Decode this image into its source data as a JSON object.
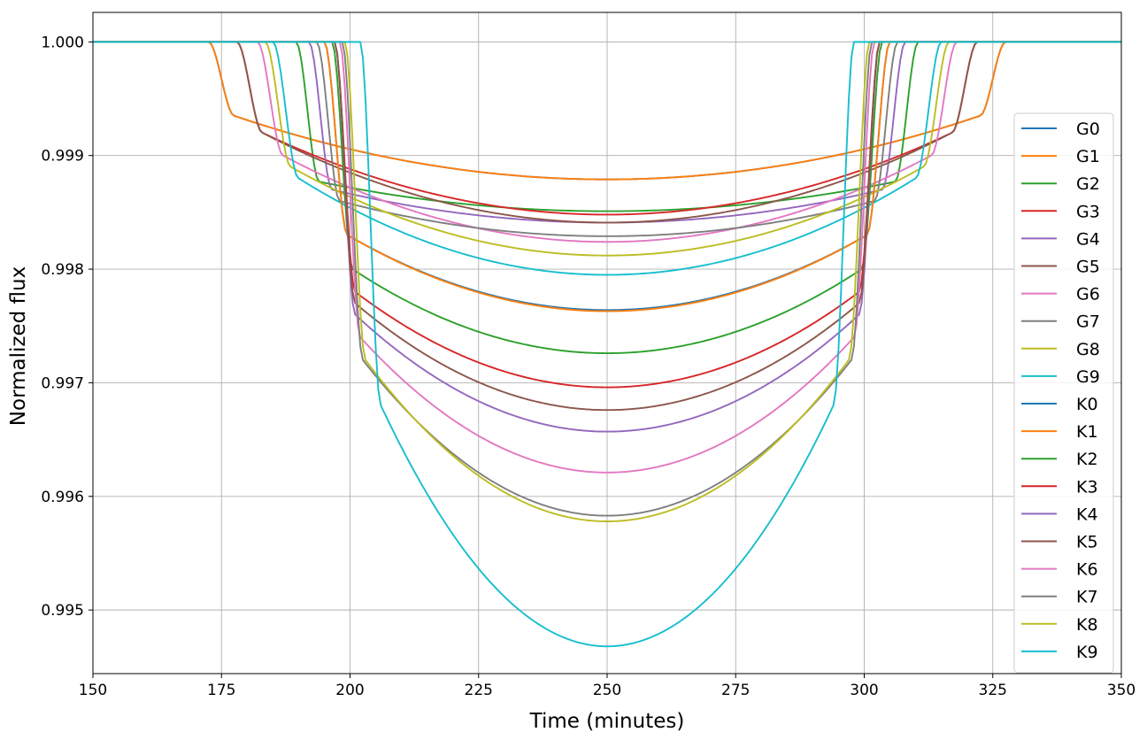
{
  "chart_data": {
    "type": "line",
    "title": "",
    "xlabel": "Time (minutes)",
    "ylabel": "Normalized flux",
    "xlim": [
      150,
      350
    ],
    "ylim": [
      0.99444,
      1.00026
    ],
    "xticks": [
      150,
      175,
      200,
      225,
      250,
      275,
      300,
      325,
      350
    ],
    "xtick_labels": [
      "150",
      "175",
      "200",
      "225",
      "250",
      "275",
      "300",
      "325",
      "350"
    ],
    "yticks": [
      0.995,
      0.996,
      0.997,
      0.998,
      0.999,
      1.0
    ],
    "ytick_labels": [
      "0.995",
      "0.996",
      "0.997",
      "0.998",
      "0.999",
      "1.000"
    ],
    "grid": true,
    "legend_position": "right",
    "transit_center": 250,
    "series": [
      {
        "name": "G0",
        "color": "#1f77b4",
        "start": 172.5,
        "ingress_end": 177.5,
        "min_flux": 0.99879,
        "contact_flux": 0.99935
      },
      {
        "name": "G1",
        "color": "#ff7f0e",
        "start": 172.5,
        "ingress_end": 177.5,
        "min_flux": 0.99879,
        "contact_flux": 0.99935
      },
      {
        "name": "G2",
        "color": "#2ca02c",
        "start": 189.5,
        "ingress_end": 194.0,
        "min_flux": 0.99851,
        "contact_flux": 0.99877
      },
      {
        "name": "G3",
        "color": "#d62728",
        "start": 178.0,
        "ingress_end": 183.0,
        "min_flux": 0.99848,
        "contact_flux": 0.9992
      },
      {
        "name": "G4",
        "color": "#9467bd",
        "start": 192.0,
        "ingress_end": 196.5,
        "min_flux": 0.99841,
        "contact_flux": 0.9987
      },
      {
        "name": "G5",
        "color": "#8c564b",
        "start": 178.0,
        "ingress_end": 183.0,
        "min_flux": 0.99841,
        "contact_flux": 0.9992
      },
      {
        "name": "G6",
        "color": "#e377c2",
        "start": 182.0,
        "ingress_end": 187.0,
        "min_flux": 0.99824,
        "contact_flux": 0.999
      },
      {
        "name": "G7",
        "color": "#7f7f7f",
        "start": 193.5,
        "ingress_end": 198.0,
        "min_flux": 0.99829,
        "contact_flux": 0.9986
      },
      {
        "name": "G8",
        "color": "#bcbd22",
        "start": 183.5,
        "ingress_end": 188.5,
        "min_flux": 0.99812,
        "contact_flux": 0.9989
      },
      {
        "name": "G9",
        "color": "#17becf",
        "start": 185.0,
        "ingress_end": 190.0,
        "min_flux": 0.99795,
        "contact_flux": 0.9988
      },
      {
        "name": "K0",
        "color": "#1f77b4",
        "start": 195.0,
        "ingress_end": 199.5,
        "min_flux": 0.99764,
        "contact_flux": 0.9983
      },
      {
        "name": "K1",
        "color": "#ff7f0e",
        "start": 195.0,
        "ingress_end": 199.5,
        "min_flux": 0.99763,
        "contact_flux": 0.9983
      },
      {
        "name": "K2",
        "color": "#2ca02c",
        "start": 196.5,
        "ingress_end": 200.5,
        "min_flux": 0.99726,
        "contact_flux": 0.998
      },
      {
        "name": "K3",
        "color": "#d62728",
        "start": 197.0,
        "ingress_end": 201.0,
        "min_flux": 0.99696,
        "contact_flux": 0.9978
      },
      {
        "name": "K4",
        "color": "#9467bd",
        "start": 197.0,
        "ingress_end": 201.0,
        "min_flux": 0.99657,
        "contact_flux": 0.9976
      },
      {
        "name": "K5",
        "color": "#8c564b",
        "start": 197.0,
        "ingress_end": 201.0,
        "min_flux": 0.99676,
        "contact_flux": 0.9977
      },
      {
        "name": "K6",
        "color": "#e377c2",
        "start": 198.0,
        "ingress_end": 202.0,
        "min_flux": 0.99621,
        "contact_flux": 0.9974
      },
      {
        "name": "K7",
        "color": "#7f7f7f",
        "start": 198.5,
        "ingress_end": 202.5,
        "min_flux": 0.99583,
        "contact_flux": 0.9972
      },
      {
        "name": "K8",
        "color": "#bcbd22",
        "start": 199.0,
        "ingress_end": 203.0,
        "min_flux": 0.99578,
        "contact_flux": 0.9972
      },
      {
        "name": "K9",
        "color": "#17becf",
        "start": 202.0,
        "ingress_end": 206.0,
        "min_flux": 0.99468,
        "contact_flux": 0.9968
      }
    ]
  }
}
